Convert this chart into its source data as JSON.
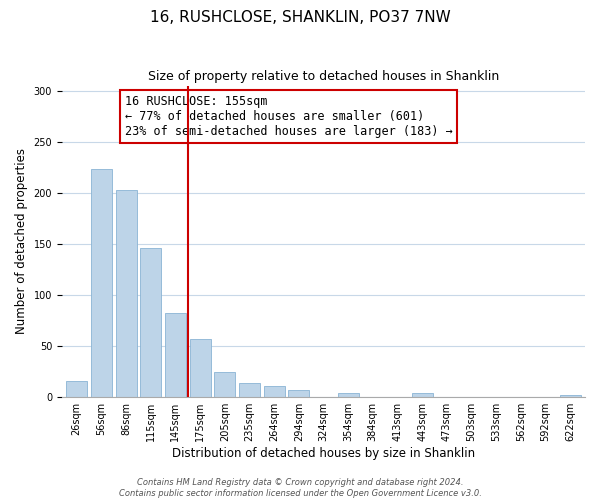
{
  "title": "16, RUSHCLOSE, SHANKLIN, PO37 7NW",
  "subtitle": "Size of property relative to detached houses in Shanklin",
  "xlabel": "Distribution of detached houses by size in Shanklin",
  "ylabel": "Number of detached properties",
  "bar_labels": [
    "26sqm",
    "56sqm",
    "86sqm",
    "115sqm",
    "145sqm",
    "175sqm",
    "205sqm",
    "235sqm",
    "264sqm",
    "294sqm",
    "324sqm",
    "354sqm",
    "384sqm",
    "413sqm",
    "443sqm",
    "473sqm",
    "503sqm",
    "533sqm",
    "562sqm",
    "592sqm",
    "622sqm"
  ],
  "bar_values": [
    16,
    223,
    203,
    146,
    82,
    57,
    25,
    14,
    11,
    7,
    0,
    4,
    0,
    0,
    4,
    0,
    0,
    0,
    0,
    0,
    2
  ],
  "bar_color": "#bdd4e8",
  "bar_edge_color": "#8ab4d4",
  "vline_x": 4.5,
  "vline_color": "#cc0000",
  "annotation_title": "16 RUSHCLOSE: 155sqm",
  "annotation_line1": "← 77% of detached houses are smaller (601)",
  "annotation_line2": "23% of semi-detached houses are larger (183) →",
  "annotation_box_color": "#ffffff",
  "annotation_box_edge_color": "#cc0000",
  "ylim": [
    0,
    305
  ],
  "yticks": [
    0,
    50,
    100,
    150,
    200,
    250,
    300
  ],
  "footer_line1": "Contains HM Land Registry data © Crown copyright and database right 2024.",
  "footer_line2": "Contains public sector information licensed under the Open Government Licence v3.0.",
  "bg_color": "#ffffff",
  "grid_color": "#c8d8e8",
  "title_fontsize": 11,
  "subtitle_fontsize": 9,
  "axis_label_fontsize": 8.5,
  "tick_fontsize": 7,
  "annotation_title_fontsize": 8.5,
  "annotation_body_fontsize": 8.5,
  "footer_fontsize": 6
}
